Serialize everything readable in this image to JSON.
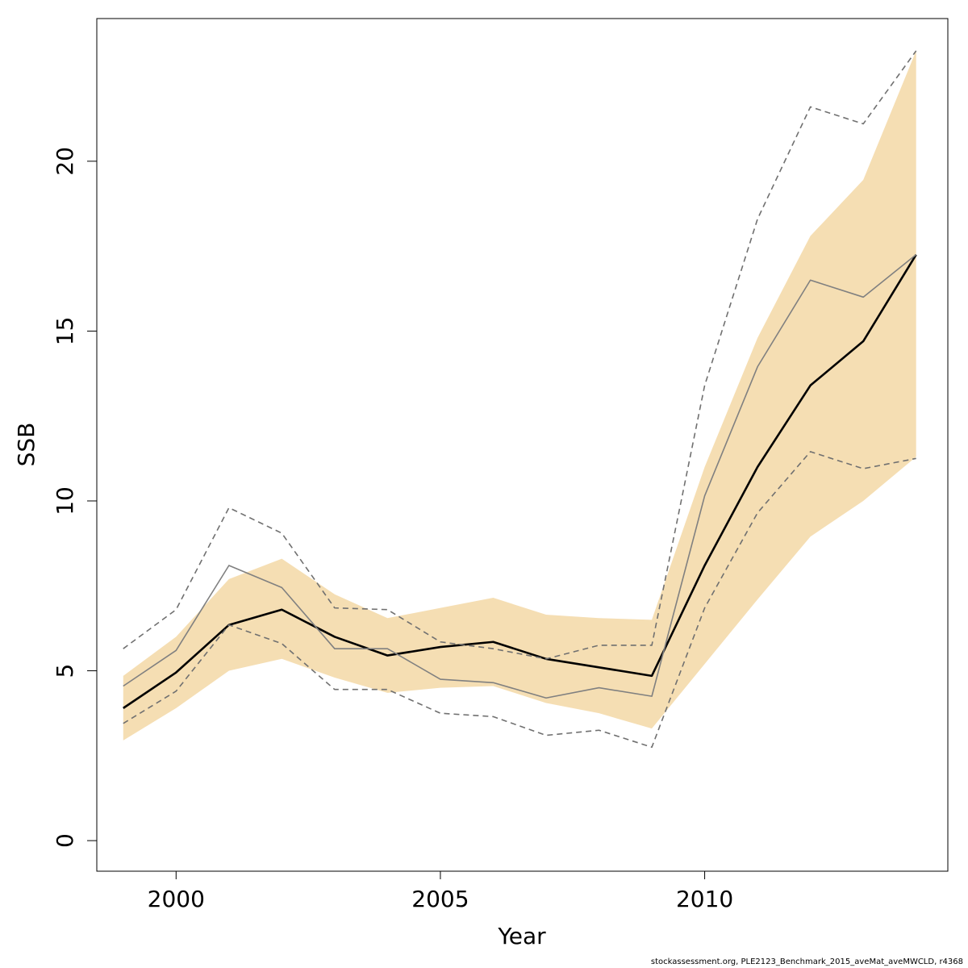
{
  "chart_data": {
    "type": "line",
    "title": "",
    "xlabel": "Year",
    "ylabel": "SSB",
    "xlim": [
      1998.5,
      2014.6
    ],
    "ylim": [
      -0.9,
      24.2
    ],
    "x_ticks": [
      2000,
      2005,
      2010
    ],
    "y_ticks": [
      0,
      5,
      10,
      15,
      20
    ],
    "grid": false,
    "legend": "none",
    "x": [
      1999,
      2000,
      2001,
      2002,
      2003,
      2004,
      2005,
      2006,
      2007,
      2008,
      2009,
      2010,
      2011,
      2012,
      2013,
      2014
    ],
    "band": {
      "color": "#f5deb3",
      "lower": [
        2.95,
        3.9,
        5.0,
        5.35,
        4.8,
        4.35,
        4.5,
        4.55,
        4.05,
        3.75,
        3.3,
        5.2,
        7.1,
        8.95,
        10.0,
        11.3
      ],
      "upper": [
        4.85,
        6.0,
        7.7,
        8.3,
        7.25,
        6.55,
        6.85,
        7.15,
        6.65,
        6.55,
        6.5,
        11.0,
        14.8,
        17.8,
        19.45,
        23.25
      ]
    },
    "series": [
      {
        "color": "#000000",
        "style": "solid",
        "weight": "bold",
        "values": [
          3.9,
          4.95,
          6.35,
          6.8,
          6.0,
          5.45,
          5.7,
          5.85,
          5.35,
          5.1,
          4.85,
          8.1,
          11.0,
          13.4,
          14.7,
          17.25
        ]
      },
      {
        "color": "#808080",
        "style": "solid",
        "weight": "normal",
        "values": [
          4.55,
          5.6,
          8.1,
          7.45,
          5.65,
          5.65,
          4.75,
          4.65,
          4.2,
          4.5,
          4.25,
          10.15,
          13.95,
          16.5,
          16.0,
          17.25
        ]
      },
      {
        "color": "#707070",
        "style": "dashed",
        "weight": "normal",
        "values": [
          5.65,
          6.8,
          9.8,
          9.05,
          6.85,
          6.8,
          5.85,
          5.65,
          5.35,
          5.75,
          5.75,
          13.4,
          18.3,
          21.6,
          21.1,
          23.25
        ]
      },
      {
        "color": "#707070",
        "style": "dashed",
        "weight": "normal",
        "values": [
          3.45,
          4.4,
          6.35,
          5.8,
          4.45,
          4.45,
          3.75,
          3.65,
          3.1,
          3.25,
          2.75,
          6.85,
          9.65,
          11.45,
          10.95,
          11.25
        ]
      }
    ]
  },
  "footer_text": "stockassessment.org, PLE2123_Benchmark_2015_aveMat_aveMWCLD, r4368"
}
